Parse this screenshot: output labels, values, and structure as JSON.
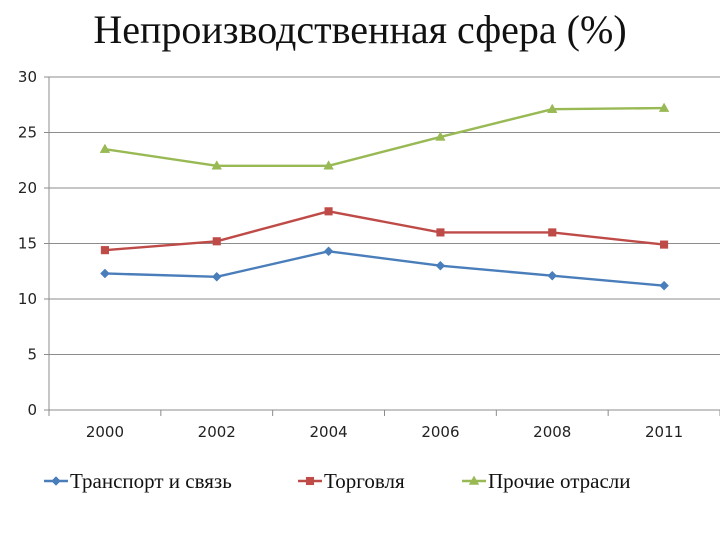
{
  "chart_data": {
    "type": "line",
    "title": "Непроизводственная сфера (%)",
    "categories": [
      "2000",
      "2002",
      "2004",
      "2006",
      "2008",
      "2011"
    ],
    "ylim": [
      0,
      30
    ],
    "yticks": [
      0,
      5,
      10,
      15,
      20,
      25,
      30
    ],
    "ytick_labels": [
      "0",
      "5",
      "10",
      "15",
      "20",
      "25",
      "30"
    ],
    "grid": "horizontal",
    "legend": "bottom",
    "series": [
      {
        "name": "Транспорт и связь",
        "values": [
          12.3,
          12.0,
          14.3,
          13.0,
          12.1,
          11.2
        ],
        "color": "#4a7ebb",
        "marker": "diamond"
      },
      {
        "name": "Торговля",
        "values": [
          14.4,
          15.2,
          17.9,
          16.0,
          16.0,
          14.9
        ],
        "color": "#be4b48",
        "marker": "square"
      },
      {
        "name": "Прочие отрасли",
        "values": [
          23.5,
          22.0,
          22.0,
          24.6,
          27.1,
          27.2
        ],
        "color": "#98b954",
        "marker": "triangle"
      }
    ]
  }
}
